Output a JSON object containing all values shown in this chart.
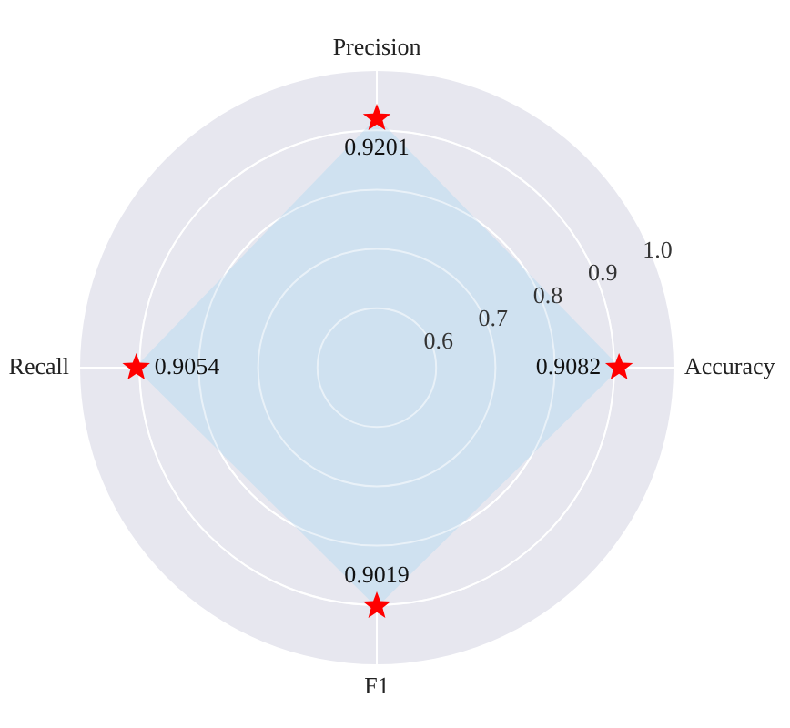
{
  "chart_data": {
    "type": "radar",
    "categories": [
      "Precision",
      "Accuracy",
      "F1",
      "Recall"
    ],
    "series": [
      {
        "color": "#cfe1f0",
        "values": [
          0.9201,
          0.9082,
          0.9019,
          0.9054
        ]
      }
    ],
    "ylim": [
      0.5,
      1.0
    ],
    "yticks": [
      0.6,
      0.7,
      0.8,
      0.9,
      {
        "value": 1.0,
        "label": "1.0"
      }
    ],
    "grid": true,
    "legend": false,
    "marker": "star",
    "data_labels": true
  }
}
